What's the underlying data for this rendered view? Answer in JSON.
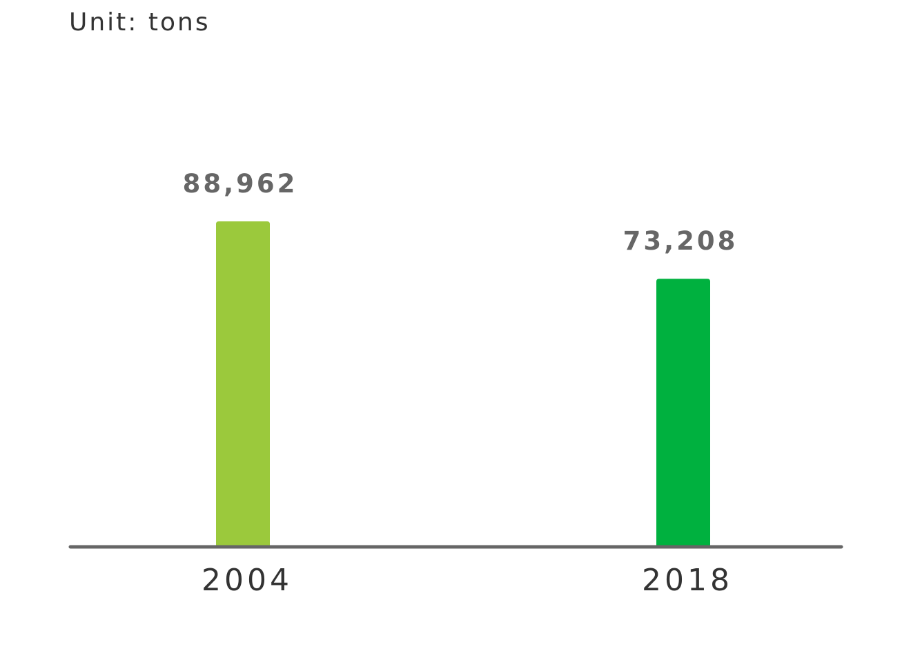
{
  "chart_data": {
    "type": "bar",
    "unit_label": "Unit: tons",
    "categories": [
      "2004",
      "2018"
    ],
    "values": [
      88962,
      73208
    ],
    "value_labels": [
      "88,962",
      "73,208"
    ],
    "bar_colors": [
      "#9BC93C",
      "#00B13F"
    ],
    "axis_color": "#666666",
    "value_label_color": "#666666",
    "category_label_color": "#333333",
    "ylim": [
      0,
      100000
    ],
    "grid": false
  }
}
